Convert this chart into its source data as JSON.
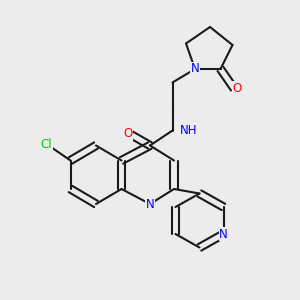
{
  "bg_color": "#ececec",
  "bond_color": "#1a1a1a",
  "bond_width": 1.5,
  "atom_colors": {
    "N": "#0000ff",
    "O": "#ff0000",
    "Cl": "#00cc00",
    "H": "#888888",
    "C": "#1a1a1a"
  },
  "font_size": 8.5,
  "font_size_small": 7.5
}
